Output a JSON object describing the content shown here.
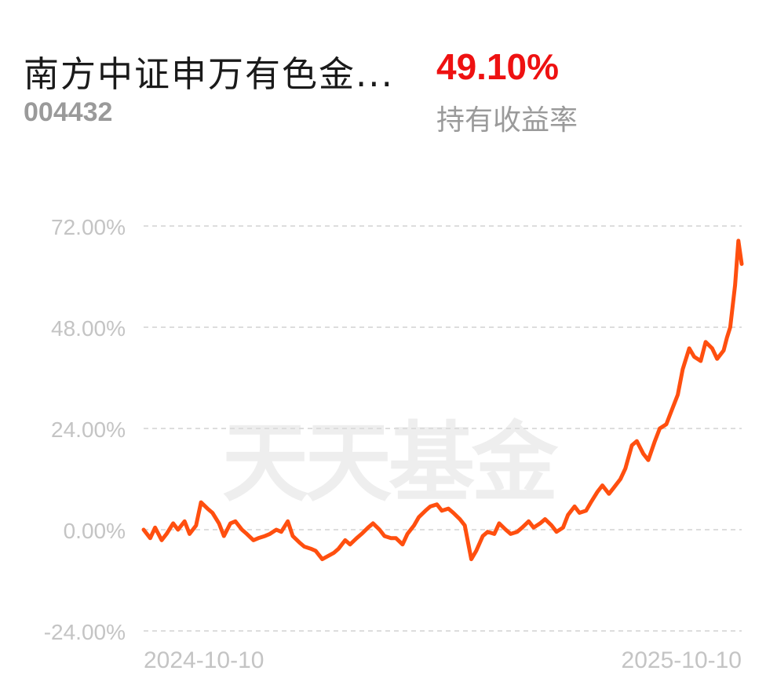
{
  "header": {
    "fund_name": "南方中证申万有色金...",
    "fund_code": "004432",
    "return_value": "49.10%",
    "return_label": "持有收益率"
  },
  "watermark": "天天基金",
  "colors": {
    "line": "#ff4f0f",
    "return": "#ee1111",
    "grid": "#dddddd",
    "label": "#c4c4c4"
  },
  "chart_data": {
    "type": "line",
    "title": "",
    "xlabel": "",
    "ylabel": "",
    "ylim": [
      -24,
      72
    ],
    "y_ticks": [
      72,
      48,
      24,
      0,
      -24
    ],
    "y_tick_labels": [
      "72.00%",
      "48.00%",
      "24.00%",
      "0.00%",
      "-24.00%"
    ],
    "x_tick_labels": [
      "2024-10-10",
      "2025-10-10"
    ],
    "x_range": [
      "2024-10-10",
      "2025-10-10"
    ],
    "grid": true,
    "legend": "none",
    "series": [
      {
        "name": "",
        "x": [
          "2024-10-10",
          "2024-10-14",
          "2024-10-17",
          "2024-10-21",
          "2024-10-24",
          "2024-10-28",
          "2024-10-31",
          "2024-11-04",
          "2024-11-07",
          "2024-11-11",
          "2024-11-14",
          "2024-11-18",
          "2024-11-21",
          "2024-11-25",
          "2024-11-28",
          "2024-12-02",
          "2024-12-05",
          "2024-12-09",
          "2024-12-12",
          "2024-12-16",
          "2024-12-19",
          "2024-12-23",
          "2024-12-26",
          "2024-12-30",
          "2025-01-02",
          "2025-01-06",
          "2025-01-09",
          "2025-01-13",
          "2025-01-16",
          "2025-01-20",
          "2025-01-23",
          "2025-01-27",
          "2025-02-03",
          "2025-02-06",
          "2025-02-10",
          "2025-02-13",
          "2025-02-17",
          "2025-02-20",
          "2025-02-24",
          "2025-02-27",
          "2025-03-03",
          "2025-03-06",
          "2025-03-10",
          "2025-03-13",
          "2025-03-17",
          "2025-03-20",
          "2025-03-24",
          "2025-03-27",
          "2025-03-31",
          "2025-04-03",
          "2025-04-07",
          "2025-04-10",
          "2025-04-14",
          "2025-04-17",
          "2025-04-21",
          "2025-04-24",
          "2025-04-28",
          "2025-05-01",
          "2025-05-05",
          "2025-05-08",
          "2025-05-12",
          "2025-05-15",
          "2025-05-19",
          "2025-05-22",
          "2025-05-26",
          "2025-05-29",
          "2025-06-02",
          "2025-06-05",
          "2025-06-09",
          "2025-06-12",
          "2025-06-16",
          "2025-06-19",
          "2025-06-23",
          "2025-06-26",
          "2025-06-30",
          "2025-07-03",
          "2025-07-07",
          "2025-07-10",
          "2025-07-14",
          "2025-07-17",
          "2025-07-21",
          "2025-07-24",
          "2025-07-28",
          "2025-07-31",
          "2025-08-04",
          "2025-08-07",
          "2025-08-11",
          "2025-08-14",
          "2025-08-18",
          "2025-08-21",
          "2025-08-25",
          "2025-08-28",
          "2025-09-01",
          "2025-09-04",
          "2025-09-08",
          "2025-09-11",
          "2025-09-15",
          "2025-09-18",
          "2025-09-22",
          "2025-09-25",
          "2025-09-29",
          "2025-10-01",
          "2025-10-03",
          "2025-10-06",
          "2025-10-08",
          "2025-10-10"
        ],
        "values": [
          0.0,
          -2.0,
          0.5,
          -2.5,
          -1.0,
          1.5,
          0.0,
          2.0,
          -1.0,
          1.0,
          6.5,
          5.0,
          4.0,
          1.5,
          -1.5,
          1.5,
          2.0,
          0.0,
          -1.0,
          -2.5,
          -2.0,
          -1.5,
          -1.0,
          0.0,
          -0.5,
          2.0,
          -1.5,
          -3.0,
          -4.0,
          -4.5,
          -5.0,
          -7.0,
          -5.5,
          -4.5,
          -2.5,
          -3.5,
          -2.0,
          -1.0,
          0.5,
          1.5,
          0.0,
          -1.5,
          -2.0,
          -2.0,
          -3.5,
          -1.0,
          1.0,
          3.0,
          4.5,
          5.5,
          6.0,
          4.5,
          5.0,
          4.0,
          2.5,
          1.0,
          -7.0,
          -5.0,
          -1.5,
          -0.5,
          -1.0,
          1.5,
          0.0,
          -1.0,
          -0.5,
          0.5,
          2.0,
          0.5,
          1.5,
          2.5,
          1.0,
          -0.5,
          0.5,
          3.5,
          5.5,
          4.0,
          4.5,
          6.5,
          9.0,
          10.5,
          8.5,
          10.0,
          12.0,
          14.5,
          20.0,
          21.0,
          18.0,
          16.5,
          21.0,
          24.0,
          25.0,
          28.0,
          32.0,
          38.0,
          43.0,
          41.0,
          40.0,
          44.5,
          43.0,
          40.5,
          42.5,
          45.5,
          48.0,
          58.0,
          68.5,
          63.0
        ]
      }
    ]
  }
}
